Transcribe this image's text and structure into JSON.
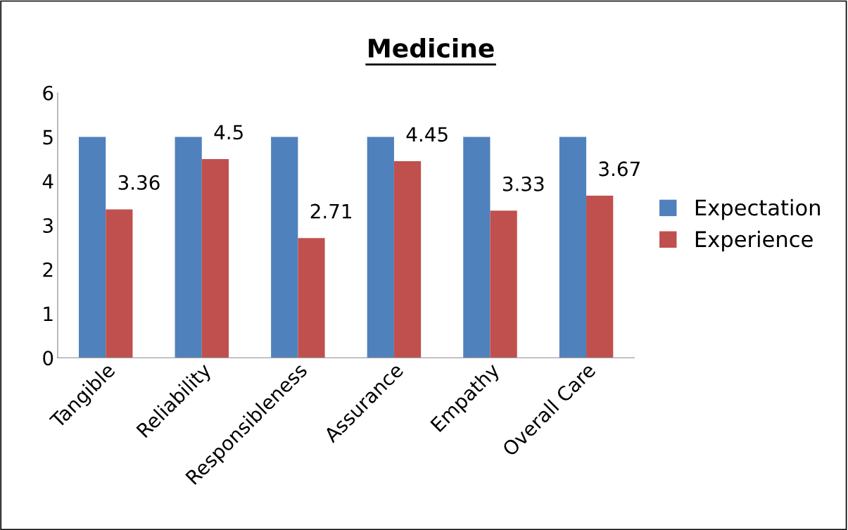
{
  "chart_data": {
    "type": "bar",
    "title": "Medicine",
    "categories": [
      "Tangible",
      "Reliability",
      "Responsibleness",
      "Assurance",
      "Empathy",
      "Overall Care"
    ],
    "series": [
      {
        "name": "Expectation",
        "color": "#4f81bd",
        "values": [
          5,
          5,
          5,
          5,
          5,
          5
        ]
      },
      {
        "name": "Experience",
        "color": "#c0504d",
        "values": [
          3.36,
          4.5,
          2.71,
          4.45,
          3.33,
          3.67
        ],
        "value_labels": [
          "3.36",
          "4.5",
          "2.71",
          "4.45",
          "3.33",
          "3.67"
        ]
      }
    ],
    "ylim": [
      0,
      6
    ],
    "yticks": [
      0,
      1,
      2,
      3,
      4,
      5,
      6
    ],
    "grid": false,
    "legend": "right"
  }
}
